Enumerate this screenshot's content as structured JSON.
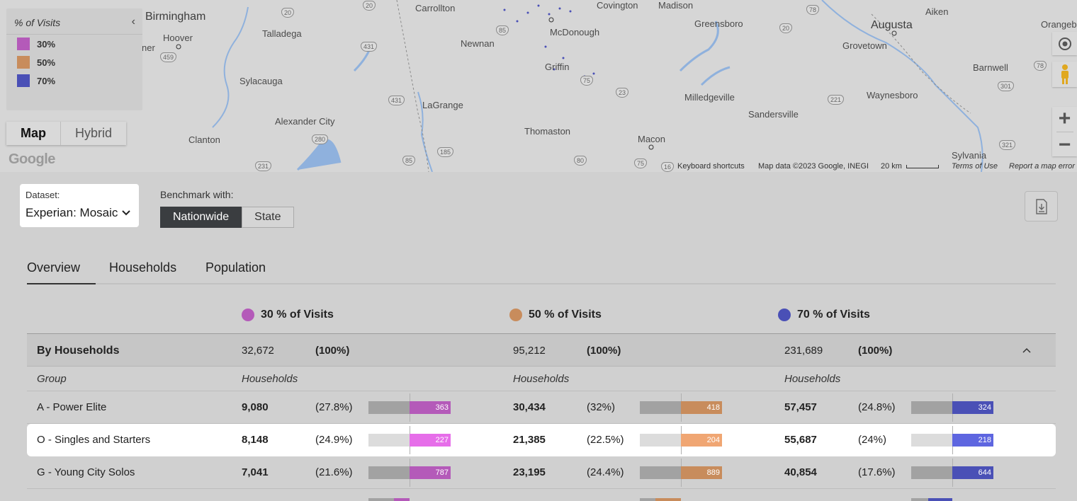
{
  "colors": {
    "c30": "#b45ab9",
    "c50": "#c88c5c",
    "c70": "#4a50b6",
    "c30_hl": "#e66ee9",
    "c50_hl": "#f0a673",
    "c70_hl": "#5e66e0"
  },
  "map": {
    "legend": {
      "title": "% of Visits",
      "items": [
        {
          "label": "30%"
        },
        {
          "label": "50%"
        },
        {
          "label": "70%"
        }
      ]
    },
    "map_type": {
      "map": "Map",
      "hybrid": "Hybrid"
    },
    "google_logo": "Google",
    "cities": [
      "Birmingham",
      "Hoover",
      "Talladega",
      "Carrollton",
      "Covington",
      "Madison",
      "Augusta",
      "Aiken",
      "Orangeb",
      "McDonough",
      "Greensboro",
      "Newnan",
      "Griffin",
      "Grovetown",
      "Barnwell",
      "Sylacauga",
      "LaGrange",
      "Milledgeville",
      "Waynesboro",
      "Sandersville",
      "Alexander City",
      "Thomaston",
      "Macon",
      "Clanton",
      "Sylvania",
      "ner"
    ],
    "highways": [
      "20",
      "20",
      "78",
      "20",
      "85",
      "431",
      "459",
      "431",
      "75",
      "23",
      "221",
      "301",
      "280",
      "185",
      "231",
      "85",
      "80",
      "75",
      "16",
      "321",
      "78"
    ],
    "attribution": {
      "shortcuts": "Keyboard shortcuts",
      "data": "Map data ©2023 Google, INEGI",
      "scale": "20 km",
      "terms": "Terms of Use",
      "report": "Report a map error"
    }
  },
  "controls": {
    "dataset_label": "Dataset:",
    "dataset_value": "Experian: Mosaic",
    "benchmark_label": "Benchmark with:",
    "benchmark_options": [
      "Nationwide",
      "State"
    ]
  },
  "tabs": [
    "Overview",
    "Households",
    "Population"
  ],
  "columns": [
    "30 % of Visits",
    "50 % of Visits",
    "70 % of Visits"
  ],
  "summary": {
    "label": "By Households",
    "values": [
      {
        "count": "32,672",
        "pct": "(100%)"
      },
      {
        "count": "95,212",
        "pct": "(100%)"
      },
      {
        "count": "231,689",
        "pct": "(100%)"
      }
    ]
  },
  "header": {
    "group": "Group",
    "households": "Households"
  },
  "rows": [
    {
      "group": "A - Power Elite",
      "cols": [
        {
          "count": "9,080",
          "pct": "(27.8%)",
          "index": "363"
        },
        {
          "count": "30,434",
          "pct": "(32%)",
          "index": "418"
        },
        {
          "count": "57,457",
          "pct": "(24.8%)",
          "index": "324"
        }
      ]
    },
    {
      "group": "O - Singles and Starters",
      "cols": [
        {
          "count": "8,148",
          "pct": "(24.9%)",
          "index": "227"
        },
        {
          "count": "21,385",
          "pct": "(22.5%)",
          "index": "204"
        },
        {
          "count": "55,687",
          "pct": "(24%)",
          "index": "218"
        }
      ]
    },
    {
      "group": "G - Young City Solos",
      "cols": [
        {
          "count": "7,041",
          "pct": "(21.6%)",
          "index": "787"
        },
        {
          "count": "23,195",
          "pct": "(24.4%)",
          "index": "889"
        },
        {
          "count": "40,854",
          "pct": "(17.6%)",
          "index": "644"
        }
      ]
    }
  ]
}
